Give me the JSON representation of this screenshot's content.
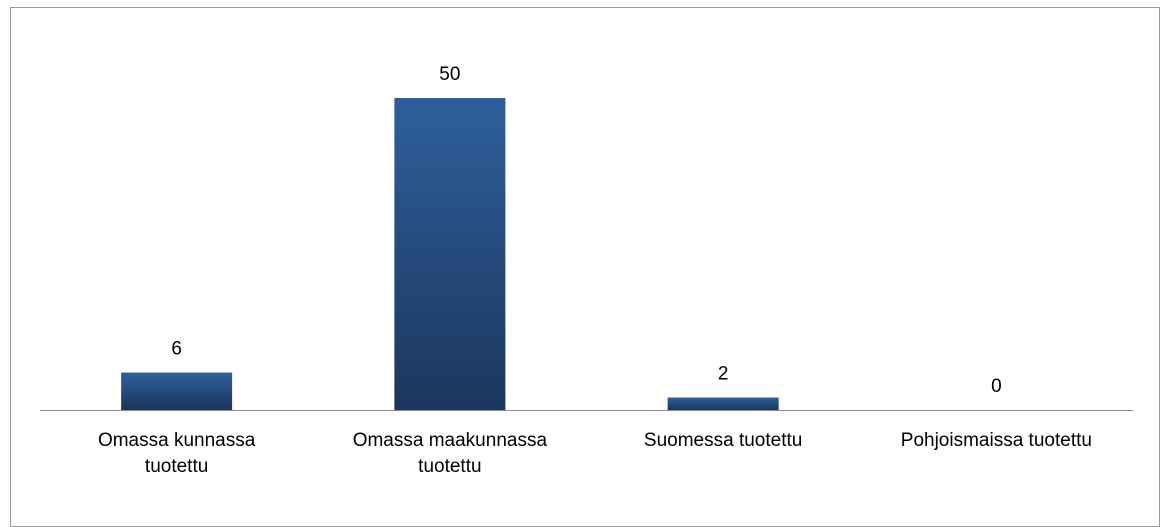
{
  "chart_data": {
    "type": "bar",
    "categories": [
      "Omassa kunnassa tuotettu",
      "Omassa maakunnassa tuotettu",
      "Suomessa tuotettu",
      "Pohjoismaissa tuotettu"
    ],
    "values": [
      6,
      50,
      2,
      0
    ],
    "color": "#2a5288"
  }
}
